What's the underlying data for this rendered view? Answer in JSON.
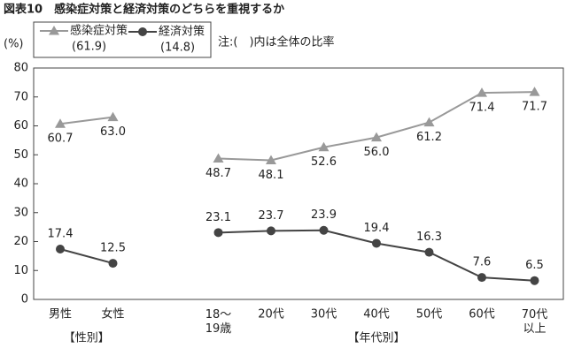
{
  "chart_data": {
    "type": "line",
    "title": "図表10　感染症対策と経済対策のどちらを重視するか",
    "y_label": "(%)",
    "note": "注:(　)内は全体の比率",
    "categories": [
      "男性",
      "女性",
      null,
      "18～\n19歳",
      "20代",
      "30代",
      "40代",
      "50代",
      "60代",
      "70代\n以上"
    ],
    "group_labels": [
      "【性別】",
      "【年代別】"
    ],
    "series": [
      {
        "name": "感染症対策",
        "overall": "(61.9)",
        "color": "#999999",
        "marker": "triangle",
        "label_side": "below",
        "values": [
          60.7,
          63.0,
          null,
          48.7,
          48.1,
          52.6,
          56.0,
          61.2,
          71.4,
          71.7
        ],
        "value_labels": [
          "60.7",
          "63.0",
          null,
          "48.7",
          "48.1",
          "52.6",
          "56.0",
          "61.2",
          "71.4",
          "71.7"
        ]
      },
      {
        "name": "経済対策",
        "overall": "(14.8)",
        "color": "#444444",
        "marker": "circle",
        "label_side": "above",
        "values": [
          17.4,
          12.5,
          null,
          23.1,
          23.7,
          23.9,
          19.4,
          16.3,
          7.6,
          6.5
        ],
        "value_labels": [
          "17.4",
          "12.5",
          null,
          "23.1",
          "23.7",
          "23.9",
          "19.4",
          "16.3",
          "7.6",
          "6.5"
        ]
      }
    ],
    "ylim": [
      0,
      80
    ],
    "yticks": [
      0,
      10,
      20,
      30,
      40,
      50,
      60,
      70,
      80
    ],
    "grid": false
  }
}
